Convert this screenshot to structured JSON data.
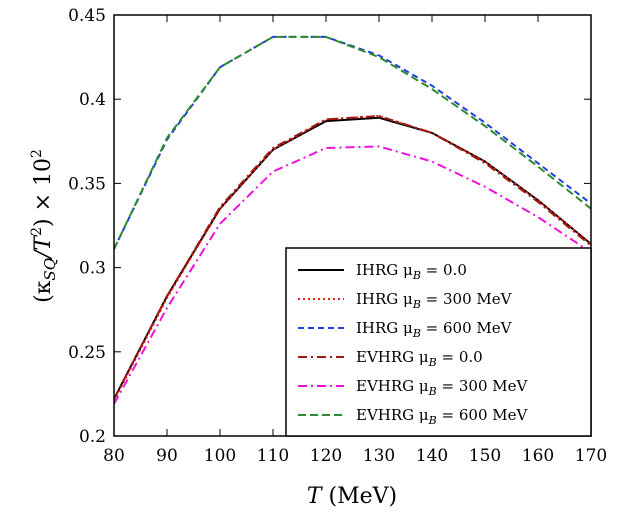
{
  "chart_data": {
    "type": "line",
    "title": "",
    "xlabel_var": "T",
    "xlabel_unit": " (MeV)",
    "ylabel_lead": "(κ",
    "ylabel_sub": "SQ",
    "ylabel_mid": "/T",
    "ylabel_sup1": "2",
    "ylabel_tail": ") × 10",
    "ylabel_sup2": "2",
    "xlim": [
      80,
      170
    ],
    "ylim": [
      0.2,
      0.45
    ],
    "xticks": [
      80,
      90,
      100,
      110,
      120,
      130,
      140,
      150,
      160,
      170
    ],
    "yticks": [
      0.2,
      0.25,
      0.3,
      0.35,
      0.4,
      0.45
    ],
    "grid": false,
    "legend_position": "bottom-right",
    "x": [
      80,
      90,
      100,
      110,
      120,
      130,
      140,
      150,
      160,
      170
    ],
    "series": [
      {
        "name": "IHRG μ_B = 0.0",
        "legend_prefix": "IHRG μ",
        "legend_sub": "B",
        "legend_value": " = 0.0",
        "color": "#000000",
        "dash": "",
        "values": [
          0.222,
          0.283,
          0.335,
          0.37,
          0.387,
          0.389,
          0.38,
          0.363,
          0.34,
          0.314
        ]
      },
      {
        "name": "IHRG μ_B = 300 MeV",
        "legend_prefix": "IHRG μ",
        "legend_sub": "B",
        "legend_value": " = 300 MeV",
        "color": "#e41a1c",
        "dash": "2,3",
        "values": [
          0.221,
          0.282,
          0.335,
          0.37,
          0.388,
          0.39,
          0.38,
          0.363,
          0.34,
          0.314
        ]
      },
      {
        "name": "IHRG μ_B = 600 MeV",
        "legend_prefix": "IHRG μ",
        "legend_sub": "B",
        "legend_value": " = 600 MeV",
        "color": "#1f3fe0",
        "dash": "6,4",
        "values": [
          0.311,
          0.376,
          0.419,
          0.437,
          0.437,
          0.426,
          0.408,
          0.386,
          0.362,
          0.338
        ]
      },
      {
        "name": "EVHRG μ_B = 0.0",
        "legend_prefix": "EVHRG μ",
        "legend_sub": "B",
        "legend_value": " = 0.0",
        "color": "#a0180f",
        "dash": "9,4,2,4",
        "values": [
          0.222,
          0.283,
          0.336,
          0.371,
          0.388,
          0.39,
          0.38,
          0.362,
          0.339,
          0.313
        ]
      },
      {
        "name": "EVHRG μ_B = 300 MeV",
        "legend_prefix": "EVHRG μ",
        "legend_sub": "B",
        "legend_value": " = 300 MeV",
        "color": "#ee11dd",
        "dash": "9,4,2,4",
        "values": [
          0.219,
          0.276,
          0.326,
          0.357,
          0.371,
          0.372,
          0.363,
          0.348,
          0.33,
          0.309
        ]
      },
      {
        "name": "EVHRG μ_B = 600 MeV",
        "legend_prefix": "EVHRG μ",
        "legend_sub": "B",
        "legend_value": " = 600 MeV",
        "color": "#2e8b2e",
        "dash": "8,4",
        "values": [
          0.311,
          0.377,
          0.419,
          0.437,
          0.437,
          0.425,
          0.406,
          0.384,
          0.36,
          0.335
        ]
      }
    ]
  }
}
